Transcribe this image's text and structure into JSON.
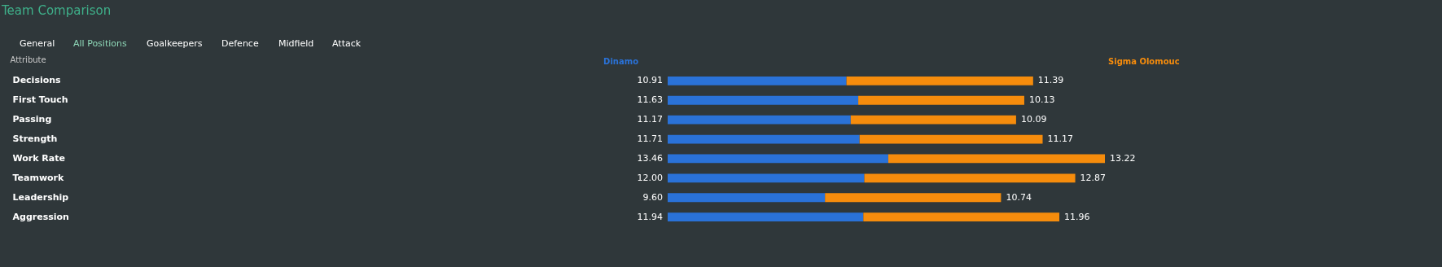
{
  "chart_data": {
    "type": "bar",
    "orientation": "horizontal",
    "stacked": true,
    "title": "Team Comparison",
    "ylabel": "Attribute",
    "annotations": [
      "General",
      "All Positions",
      "Goalkeepers",
      "Defence",
      "Midfield",
      "Attack"
    ],
    "categories": [
      "Decisions",
      "First Touch",
      "Passing",
      "Strength",
      "Work Rate",
      "Teamwork",
      "Leadership",
      "Aggression"
    ],
    "series": [
      {
        "name": "Dinamo",
        "color": "#2a72d8",
        "values": [
          10.91,
          11.63,
          11.17,
          11.71,
          13.46,
          12.0,
          9.6,
          11.94
        ],
        "value_labels": [
          "10.91",
          "11.63",
          "11.17",
          "11.71",
          "13.46",
          "12.00",
          "9.60",
          "11.94"
        ]
      },
      {
        "name": "Sigma Olomouc",
        "color": "#f68c0c",
        "values": [
          11.39,
          10.13,
          10.09,
          11.17,
          13.22,
          12.87,
          10.74,
          11.96
        ],
        "value_labels": [
          "11.39",
          "10.13",
          "10.09",
          "11.17",
          "13.22",
          "12.87",
          "10.74",
          "11.96"
        ]
      }
    ],
    "legend": false,
    "grid": false
  }
}
